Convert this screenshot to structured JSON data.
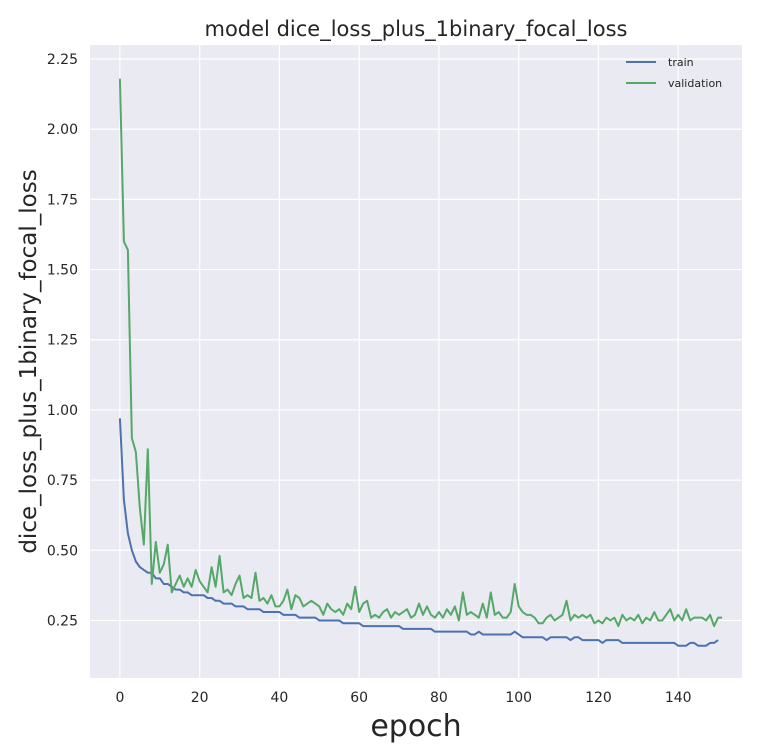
{
  "chart_data": {
    "type": "line",
    "title": "model dice_loss_plus_1binary_focal_loss",
    "xlabel": "epoch",
    "ylabel": "dice_loss_plus_1binary_focal_loss",
    "xlim": [
      -7.5,
      156
    ],
    "ylim": [
      0.045,
      2.3
    ],
    "xticks": [
      0,
      20,
      40,
      60,
      80,
      100,
      120,
      140
    ],
    "yticks": [
      0.25,
      0.5,
      0.75,
      1.0,
      1.25,
      1.5,
      1.75,
      2.0,
      2.25
    ],
    "ytick_labels": [
      "0.25",
      "0.50",
      "0.75",
      "1.00",
      "1.25",
      "1.50",
      "1.75",
      "2.00",
      "2.25"
    ],
    "grid": true,
    "legend_position": "top-right",
    "colors": {
      "background": "#eaeaf2",
      "grid": "#ffffff"
    },
    "series": [
      {
        "name": "train",
        "color": "#4c72b0",
        "values": [
          0.97,
          0.68,
          0.56,
          0.5,
          0.46,
          0.44,
          0.43,
          0.42,
          0.42,
          0.4,
          0.4,
          0.38,
          0.38,
          0.37,
          0.36,
          0.36,
          0.35,
          0.35,
          0.34,
          0.34,
          0.34,
          0.34,
          0.33,
          0.33,
          0.32,
          0.32,
          0.31,
          0.31,
          0.31,
          0.3,
          0.3,
          0.3,
          0.29,
          0.29,
          0.29,
          0.29,
          0.28,
          0.28,
          0.28,
          0.28,
          0.28,
          0.27,
          0.27,
          0.27,
          0.27,
          0.26,
          0.26,
          0.26,
          0.26,
          0.26,
          0.25,
          0.25,
          0.25,
          0.25,
          0.25,
          0.25,
          0.24,
          0.24,
          0.24,
          0.24,
          0.24,
          0.23,
          0.23,
          0.23,
          0.23,
          0.23,
          0.23,
          0.23,
          0.23,
          0.23,
          0.23,
          0.22,
          0.22,
          0.22,
          0.22,
          0.22,
          0.22,
          0.22,
          0.22,
          0.21,
          0.21,
          0.21,
          0.21,
          0.21,
          0.21,
          0.21,
          0.21,
          0.21,
          0.2,
          0.2,
          0.21,
          0.2,
          0.2,
          0.2,
          0.2,
          0.2,
          0.2,
          0.2,
          0.2,
          0.21,
          0.2,
          0.19,
          0.19,
          0.19,
          0.19,
          0.19,
          0.19,
          0.18,
          0.19,
          0.19,
          0.19,
          0.19,
          0.19,
          0.18,
          0.19,
          0.19,
          0.18,
          0.18,
          0.18,
          0.18,
          0.18,
          0.17,
          0.18,
          0.18,
          0.18,
          0.18,
          0.17,
          0.17,
          0.17,
          0.17,
          0.17,
          0.17,
          0.17,
          0.17,
          0.17,
          0.17,
          0.17,
          0.17,
          0.17,
          0.17,
          0.16,
          0.16,
          0.16,
          0.17,
          0.17,
          0.16,
          0.16,
          0.16,
          0.17,
          0.17,
          0.18
        ]
      },
      {
        "name": "validation",
        "color": "#55a868",
        "values": [
          2.18,
          1.6,
          1.57,
          0.9,
          0.85,
          0.65,
          0.52,
          0.86,
          0.38,
          0.53,
          0.42,
          0.45,
          0.52,
          0.35,
          0.38,
          0.41,
          0.37,
          0.4,
          0.37,
          0.43,
          0.39,
          0.37,
          0.35,
          0.44,
          0.37,
          0.48,
          0.35,
          0.36,
          0.34,
          0.38,
          0.41,
          0.33,
          0.34,
          0.33,
          0.42,
          0.32,
          0.33,
          0.31,
          0.34,
          0.3,
          0.3,
          0.32,
          0.36,
          0.29,
          0.34,
          0.33,
          0.3,
          0.31,
          0.32,
          0.31,
          0.3,
          0.27,
          0.31,
          0.29,
          0.28,
          0.29,
          0.27,
          0.31,
          0.29,
          0.37,
          0.28,
          0.31,
          0.32,
          0.26,
          0.27,
          0.26,
          0.28,
          0.29,
          0.26,
          0.28,
          0.27,
          0.28,
          0.29,
          0.26,
          0.27,
          0.31,
          0.27,
          0.3,
          0.27,
          0.26,
          0.28,
          0.26,
          0.29,
          0.27,
          0.3,
          0.25,
          0.35,
          0.27,
          0.28,
          0.27,
          0.26,
          0.31,
          0.26,
          0.35,
          0.27,
          0.28,
          0.26,
          0.26,
          0.28,
          0.38,
          0.3,
          0.28,
          0.27,
          0.27,
          0.26,
          0.24,
          0.24,
          0.26,
          0.27,
          0.25,
          0.26,
          0.27,
          0.32,
          0.25,
          0.27,
          0.26,
          0.27,
          0.26,
          0.27,
          0.24,
          0.25,
          0.24,
          0.26,
          0.25,
          0.26,
          0.23,
          0.27,
          0.25,
          0.26,
          0.25,
          0.27,
          0.24,
          0.26,
          0.25,
          0.28,
          0.25,
          0.25,
          0.27,
          0.29,
          0.25,
          0.27,
          0.25,
          0.29,
          0.25,
          0.26,
          0.26,
          0.26,
          0.25,
          0.27,
          0.23,
          0.26,
          0.26
        ]
      }
    ]
  }
}
